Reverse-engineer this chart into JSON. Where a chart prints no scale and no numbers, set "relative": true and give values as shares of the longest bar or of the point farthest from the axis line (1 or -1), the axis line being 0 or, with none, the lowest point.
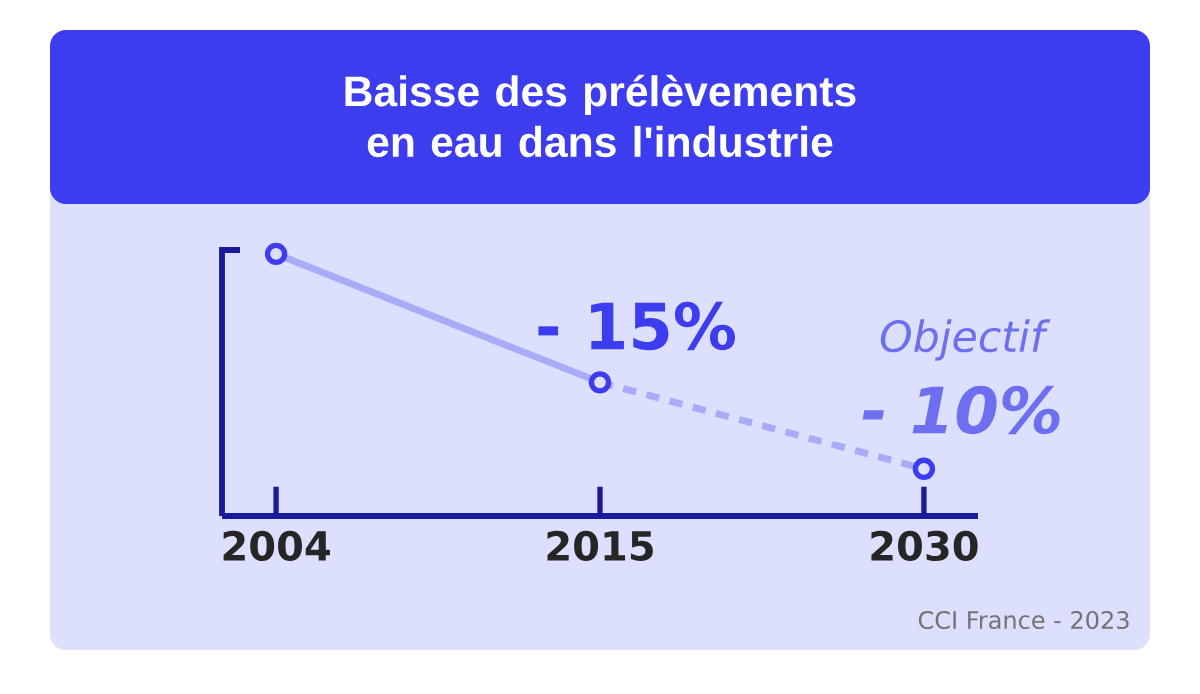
{
  "chart_data": {
    "type": "line",
    "title": "Baisse des prélèvements en eau dans l'industrie",
    "categories": [
      "2004",
      "2015",
      "2030"
    ],
    "relative": true,
    "series": [
      {
        "color": "#a8acf7",
        "values": [
          1,
          0.51,
          null
        ],
        "line_style": "solid"
      },
      {
        "color": "#a8acf7",
        "values": [
          null,
          0.51,
          0.18
        ],
        "line_style": "dashed"
      },
      {
        "type": "scatter",
        "color": "#3d3df0",
        "values": [
          1,
          0.51,
          0.18
        ]
      }
    ],
    "annotations": [
      "- 15%",
      "Objectif",
      "- 10%",
      "CCI France - 2023"
    ]
  }
}
